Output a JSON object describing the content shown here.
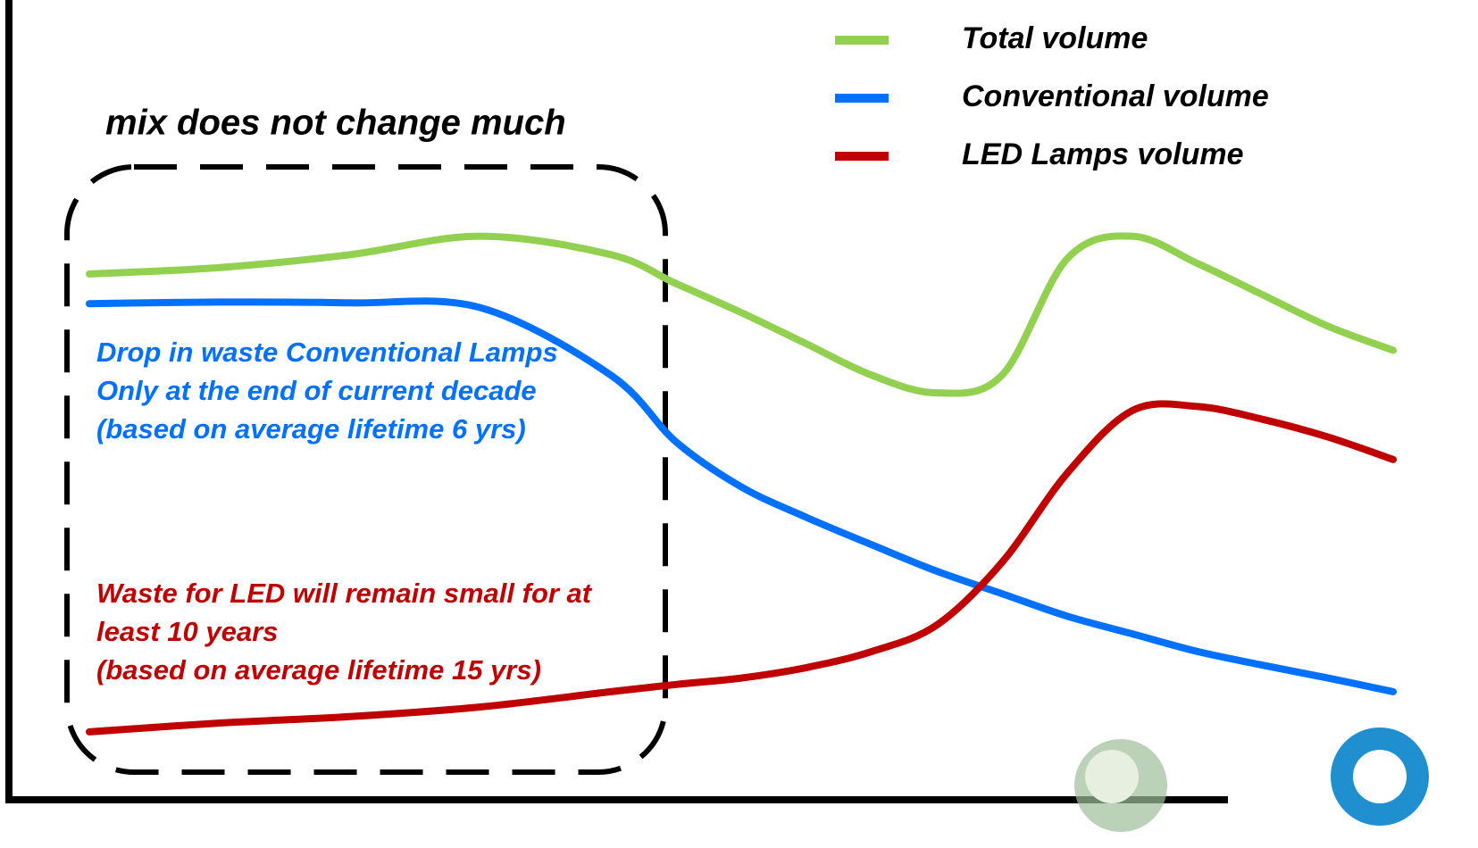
{
  "chart_data": {
    "type": "line",
    "x": [
      0,
      10,
      20,
      30,
      40,
      45,
      50,
      55,
      60,
      65,
      70,
      75,
      80,
      85,
      90,
      95,
      100
    ],
    "xlim": [
      0,
      100
    ],
    "ylim": [
      0,
      100
    ],
    "series": [
      {
        "name": "Total volume",
        "color": "#92d050",
        "values": [
          65.9,
          66.7,
          68.3,
          70.6,
          68.3,
          64.7,
          61.1,
          57.2,
          53.3,
          51.1,
          53.3,
          67.8,
          70.6,
          67.2,
          63.3,
          59.4,
          56.4
        ]
      },
      {
        "name": "Conventional volume",
        "color": "#0070ff",
        "values": [
          62.2,
          62.4,
          62.3,
          61.7,
          53.3,
          45,
          39.4,
          35.6,
          32.2,
          28.9,
          26.1,
          23.3,
          21.1,
          18.9,
          17.2,
          15.6,
          13.9
        ]
      },
      {
        "name": "LED Lamps volume",
        "color": "#c00000",
        "values": [
          8.9,
          10,
          10.8,
          12,
          13.9,
          14.8,
          15.6,
          16.9,
          18.9,
          22.2,
          30,
          41.1,
          48.9,
          49.4,
          47.8,
          45.6,
          42.8
        ]
      }
    ],
    "box_label": "mix  does not change much",
    "annotations": [
      {
        "color": "#0070ff",
        "lines": [
          "Drop in waste Conventional Lamps",
          "Only at the end of current decade",
          "(based on average lifetime 6 yrs)"
        ]
      },
      {
        "color": "#c00000",
        "lines": [
          "Waste for LED will remain small for at",
          "least 10 years",
          "(based on average lifetime 15 yrs)"
        ]
      }
    ]
  }
}
